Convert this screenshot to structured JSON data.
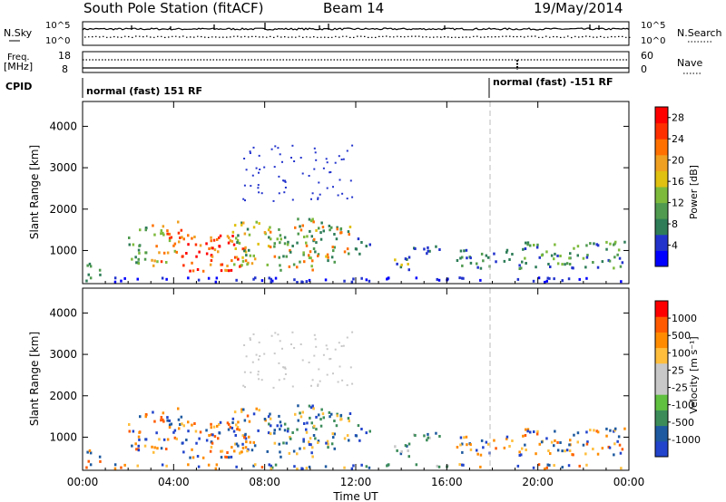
{
  "header": {
    "title": "South Pole Station (fitACF)",
    "beam": "Beam 14",
    "date": "19/May/2014"
  },
  "labels": {
    "nsky": "N.Sky",
    "nsearch": "N.Search",
    "freq": "Freq.",
    "freq_unit": "[MHz]",
    "nave": "Nave",
    "cpid": "CPID",
    "nsky_top": "10^5",
    "nsky_bottom": "10^0",
    "freq_top": "18",
    "freq_bottom": "8",
    "nave_top": "60",
    "nave_bottom": "0",
    "cpid_seg1": "normal (fast) 151 RF",
    "cpid_seg2": "normal (fast) -151 RF"
  },
  "colors": {
    "power_scale": [
      "#0000ff",
      "#2233cc",
      "#2e7d58",
      "#4f9a4f",
      "#7dba3c",
      "#e0c010",
      "#f0a020",
      "#ff7000",
      "#ff3000",
      "#ff0000"
    ],
    "velocity_scale": [
      "#ff0000",
      "#ff5a00",
      "#ff8c00",
      "#ffbe3c",
      "#c8c8c8",
      "#c8c8c8",
      "#60c040",
      "#3c8c5a",
      "#1e5aa0",
      "#2244cc"
    ],
    "axis": "#000000",
    "marker_line": "#bbbbbb"
  },
  "chart_data": [
    {
      "type": "heatmap",
      "name": "power-panel",
      "ylabel": "Slant Range [km]",
      "xlabel": "",
      "x_ticks": [
        "00:00",
        "04:00",
        "08:00",
        "12:00",
        "16:00",
        "20:00",
        "00:00"
      ],
      "y_ticks": [
        "1000",
        "2000",
        "3000",
        "4000"
      ],
      "ylim": [
        200,
        4600
      ],
      "xlim_hours": [
        0,
        24
      ],
      "colorbar": {
        "label": "Power [dB]",
        "ticks": [
          "4",
          "8",
          "12",
          "16",
          "20",
          "24",
          "28"
        ],
        "range": [
          0,
          30
        ]
      }
    },
    {
      "type": "heatmap",
      "name": "velocity-panel",
      "ylabel": "Slant Range [km]",
      "xlabel": "Time UT",
      "x_ticks": [
        "00:00",
        "04:00",
        "08:00",
        "12:00",
        "16:00",
        "20:00",
        "00:00"
      ],
      "y_ticks": [
        "1000",
        "2000",
        "3000",
        "4000"
      ],
      "ylim": [
        200,
        4600
      ],
      "xlim_hours": [
        0,
        24
      ],
      "colorbar": {
        "label": "Velocity [m s⁻¹]",
        "ticks": [
          "1000",
          "500",
          "100",
          "25",
          "-25",
          "-100",
          "-500",
          "-1000"
        ]
      }
    }
  ]
}
